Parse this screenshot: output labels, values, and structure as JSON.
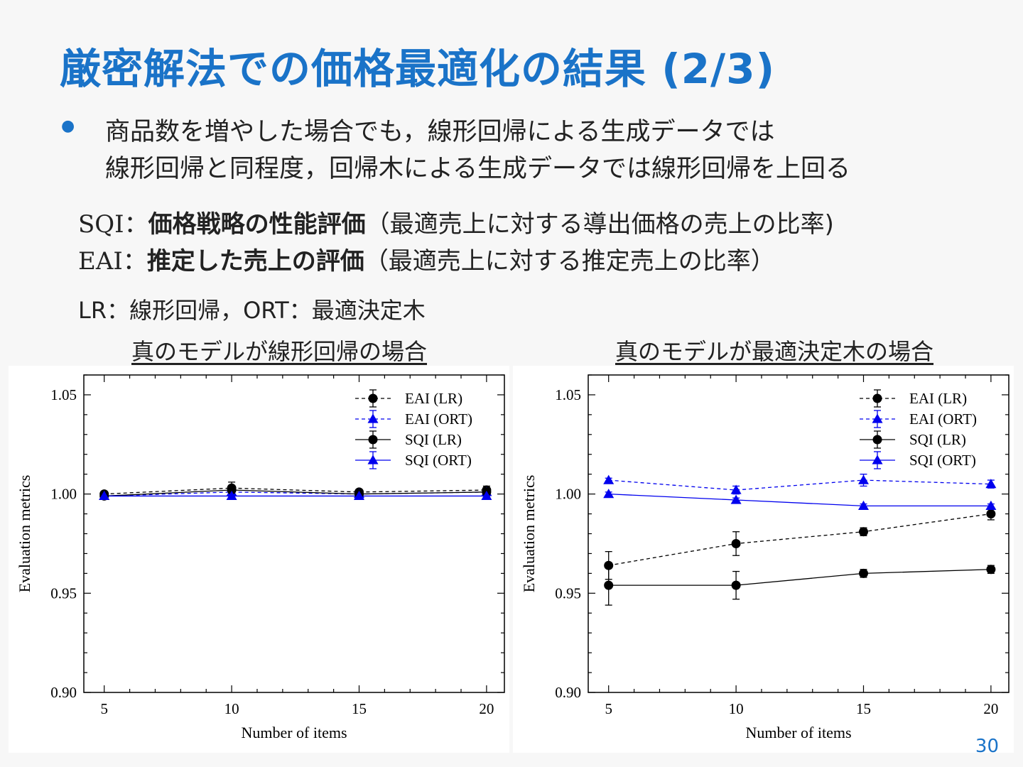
{
  "title": "厳密解法での価格最適化の結果 (2/3)",
  "bullet": {
    "line1": "商品数を増やした場合でも，線形回帰による生成データでは",
    "line2": "線形回帰と同程度，回帰木による生成データでは線形回帰を上回る"
  },
  "metrics": {
    "sqi": {
      "code": "SQI",
      "colon": "：",
      "strong": "価格戦略の性能評価",
      "desc": "（最適売上に対する導出価格の売上の比率)"
    },
    "eai": {
      "code": "EAI",
      "colon": "：",
      "strong": "推定した売上の評価",
      "desc": "（最適売上に対する推定売上の比率）"
    }
  },
  "abbrev": "LR：線形回帰，ORT：最適決定木",
  "page_number": "30",
  "colors": {
    "accent": "#1a73c8",
    "black_series": "#000000",
    "blue_series": "#0000ee"
  },
  "chart_data": [
    {
      "type": "line",
      "caption": "真のモデルが線形回帰の場合",
      "xlabel": "Number of items",
      "ylabel": "Evaluation metrics",
      "x": [
        5,
        10,
        15,
        20
      ],
      "xticks": [
        "5",
        "10",
        "15",
        "20"
      ],
      "yticks": [
        "0.90",
        "0.95",
        "1.00",
        "1.05"
      ],
      "xlim": [
        4.2,
        20.7
      ],
      "ylim": [
        0.9,
        1.06
      ],
      "legend_position": "top-right",
      "series": [
        {
          "name": "EAI (LR)",
          "marker": "circle",
          "dash": true,
          "color": "#000000",
          "values": [
            1.0,
            1.003,
            1.001,
            1.002
          ],
          "err": [
            0.001,
            0.003,
            0.001,
            0.002
          ]
        },
        {
          "name": "EAI (ORT)",
          "marker": "triangle",
          "dash": true,
          "color": "#0000ee",
          "values": [
            0.999,
            1.001,
            1.0,
            1.001
          ],
          "err": [
            0.001,
            0.002,
            0.001,
            0.002
          ]
        },
        {
          "name": "SQI (LR)",
          "marker": "circle",
          "dash": false,
          "color": "#000000",
          "values": [
            0.999,
            1.002,
            1.0,
            1.001
          ],
          "err": [
            0.001,
            0.002,
            0.001,
            0.002
          ]
        },
        {
          "name": "SQI (ORT)",
          "marker": "triangle",
          "dash": false,
          "color": "#0000ee",
          "values": [
            0.999,
            0.999,
            0.999,
            0.999
          ],
          "err": [
            0.001,
            0.001,
            0.001,
            0.001
          ]
        }
      ]
    },
    {
      "type": "line",
      "caption": "真のモデルが最適決定木の場合",
      "xlabel": "Number of items",
      "ylabel": "Evaluation metrics",
      "x": [
        5,
        10,
        15,
        20
      ],
      "xticks": [
        "5",
        "10",
        "15",
        "20"
      ],
      "yticks": [
        "0.90",
        "0.95",
        "1.00",
        "1.05"
      ],
      "xlim": [
        4.2,
        20.7
      ],
      "ylim": [
        0.9,
        1.06
      ],
      "legend_position": "top-right",
      "series": [
        {
          "name": "EAI (LR)",
          "marker": "circle",
          "dash": true,
          "color": "#000000",
          "values": [
            0.964,
            0.975,
            0.981,
            0.99
          ],
          "err": [
            0.007,
            0.006,
            0.002,
            0.003
          ]
        },
        {
          "name": "EAI (ORT)",
          "marker": "triangle",
          "dash": true,
          "color": "#0000ee",
          "values": [
            1.007,
            1.002,
            1.007,
            1.005
          ],
          "err": [
            0.001,
            0.002,
            0.003,
            0.002
          ]
        },
        {
          "name": "SQI (LR)",
          "marker": "circle",
          "dash": false,
          "color": "#000000",
          "values": [
            0.954,
            0.954,
            0.96,
            0.962
          ],
          "err": [
            0.01,
            0.007,
            0.002,
            0.002
          ]
        },
        {
          "name": "SQI (ORT)",
          "marker": "triangle",
          "dash": false,
          "color": "#0000ee",
          "values": [
            1.0,
            0.997,
            0.994,
            0.994
          ],
          "err": [
            0.001,
            0.001,
            0.001,
            0.001
          ]
        }
      ]
    }
  ]
}
